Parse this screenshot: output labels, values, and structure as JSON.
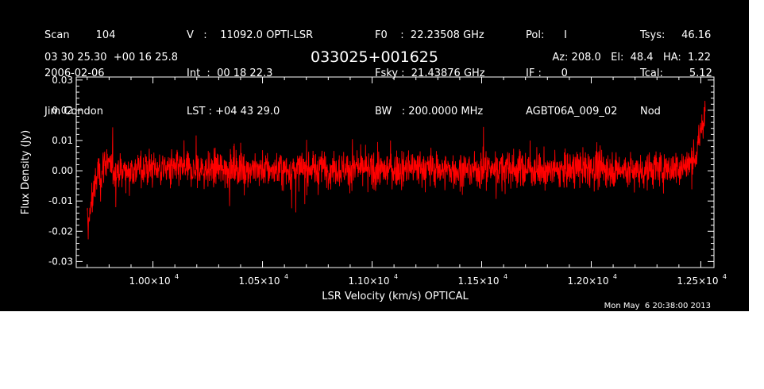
{
  "header": {
    "col1": [
      "Scan        104",
      "2006-02-06",
      "Jim Condon"
    ],
    "col2": [
      "V   :    11092.0 OPTI-LSR",
      "Int  :  00 18 22.3",
      "LST : +04 43 29.0"
    ],
    "col3": [
      "F0    :  22.23508 GHz",
      "Fsky :  21.43876 GHz",
      "BW   : 200.0000 MHz"
    ],
    "col4": [
      "Pol:      I",
      "IF :      0",
      "AGBT06A_009_02"
    ],
    "col5": [
      "Tsys:     46.16",
      "Tcal:        5.12",
      "Nod"
    ],
    "coords": "03 30 25.30  +00 16 25.8",
    "source": "033025+001625",
    "az_el_ha": "Az: 208.0   El:  48.4   HA:  1.22"
  },
  "timestamp": "Mon May  6 20:38:00 2013",
  "colors": {
    "background": "#000000",
    "trace": "#ff0000",
    "axes": "#ffffff"
  },
  "chart_data": {
    "type": "line",
    "xlabel": "LSR Velocity (km/s) OPTICAL",
    "ylabel": "Flux Density (Jy)",
    "xlim": [
      9650,
      12560
    ],
    "ylim": [
      -0.032,
      0.031
    ],
    "x_ticks": [
      {
        "value": 10000,
        "label": "1.00×10",
        "exp": "4"
      },
      {
        "value": 10500,
        "label": "1.05×10",
        "exp": "4"
      },
      {
        "value": 11000,
        "label": "1.10×10",
        "exp": "4"
      },
      {
        "value": 11500,
        "label": "1.15×10",
        "exp": "4"
      },
      {
        "value": 12000,
        "label": "1.20×10",
        "exp": "4"
      },
      {
        "value": 12500,
        "label": "1.25×10",
        "exp": "4"
      }
    ],
    "y_ticks": [
      {
        "value": -0.03,
        "label": "-0.03"
      },
      {
        "value": -0.02,
        "label": "-0.02"
      },
      {
        "value": -0.01,
        "label": "-0.01"
      },
      {
        "value": 0.0,
        "label": "0.00"
      },
      {
        "value": 0.01,
        "label": "0.01"
      },
      {
        "value": 0.02,
        "label": "0.02"
      },
      {
        "value": 0.03,
        "label": "0.03"
      }
    ],
    "series": [
      {
        "color": "#ff0000",
        "x_start": 9700,
        "x_end": 12520,
        "points": [
          [
            9700,
            -0.017
          ],
          [
            9705,
            -0.02
          ],
          [
            9710,
            -0.012
          ],
          [
            9715,
            -0.016
          ],
          [
            9720,
            -0.008
          ],
          [
            9725,
            -0.01
          ],
          [
            9730,
            -0.004
          ],
          [
            9740,
            -0.006
          ],
          [
            9750,
            0.002
          ],
          [
            9760,
            -0.003
          ],
          [
            9780,
            0.004
          ],
          [
            9800,
            0.001
          ],
          [
            9850,
            0.0
          ],
          [
            10000,
            0.001
          ],
          [
            10200,
            0.0
          ],
          [
            10400,
            0.001
          ],
          [
            10600,
            0.0
          ],
          [
            10800,
            0.001
          ],
          [
            11000,
            0.0
          ],
          [
            11200,
            0.001
          ],
          [
            11400,
            0.0
          ],
          [
            11600,
            0.001
          ],
          [
            11800,
            0.0
          ],
          [
            12000,
            0.001
          ],
          [
            12200,
            0.0
          ],
          [
            12400,
            0.001
          ],
          [
            12440,
            0.002
          ],
          [
            12470,
            0.004
          ],
          [
            12490,
            0.008
          ],
          [
            12500,
            0.013
          ],
          [
            12510,
            0.016
          ],
          [
            12520,
            0.019
          ]
        ]
      }
    ]
  }
}
